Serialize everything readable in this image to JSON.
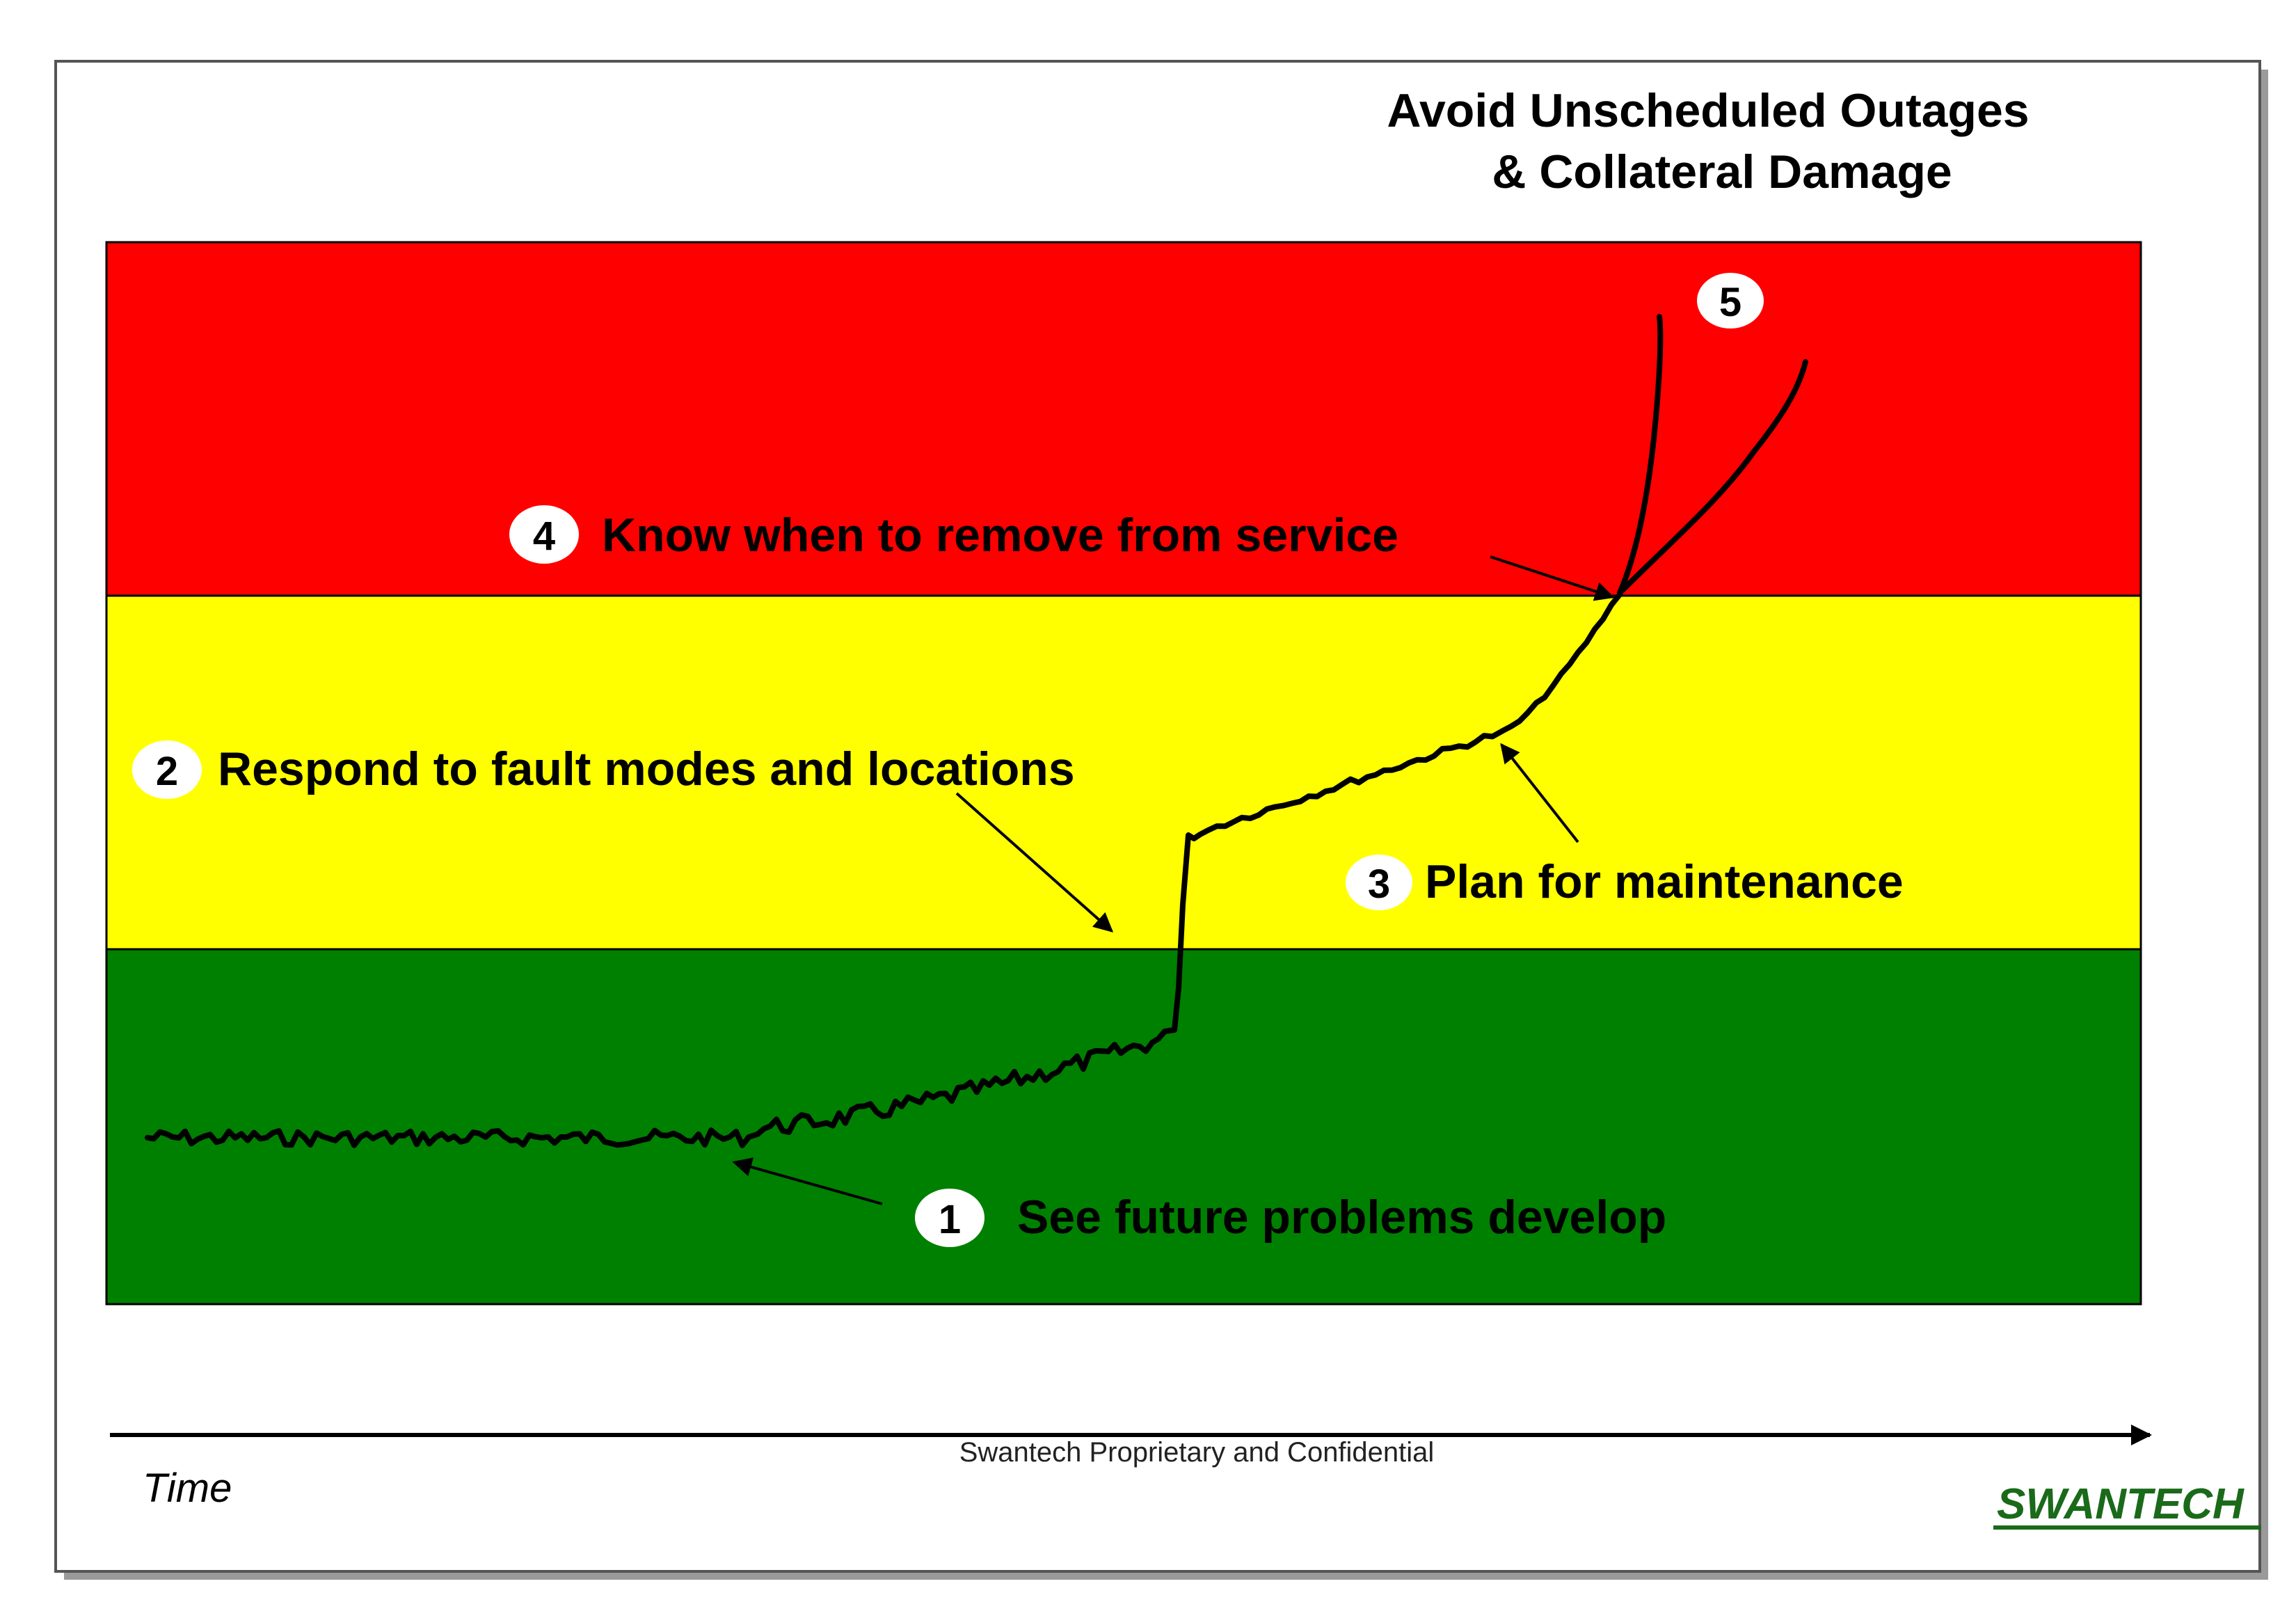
{
  "title_line1": "Avoid Unscheduled Outages",
  "title_line2": "& Collateral Damage",
  "zones": {
    "red": "#ff0000",
    "yellow": "#ffff00",
    "green": "#008000"
  },
  "callouts": [
    {
      "number": "1",
      "text": "See future problems develop"
    },
    {
      "number": "2",
      "text": "Respond to fault modes and locations"
    },
    {
      "number": "3",
      "text": "Plan for maintenance"
    },
    {
      "number": "4",
      "text": "Know when to remove from service"
    },
    {
      "number": "5",
      "text": ""
    }
  ],
  "axis_label": "Time",
  "footer_text": "Swantech Proprietary and Confidential",
  "logo_text": "SWANTECH",
  "logo_color": "#1a6a1a"
}
